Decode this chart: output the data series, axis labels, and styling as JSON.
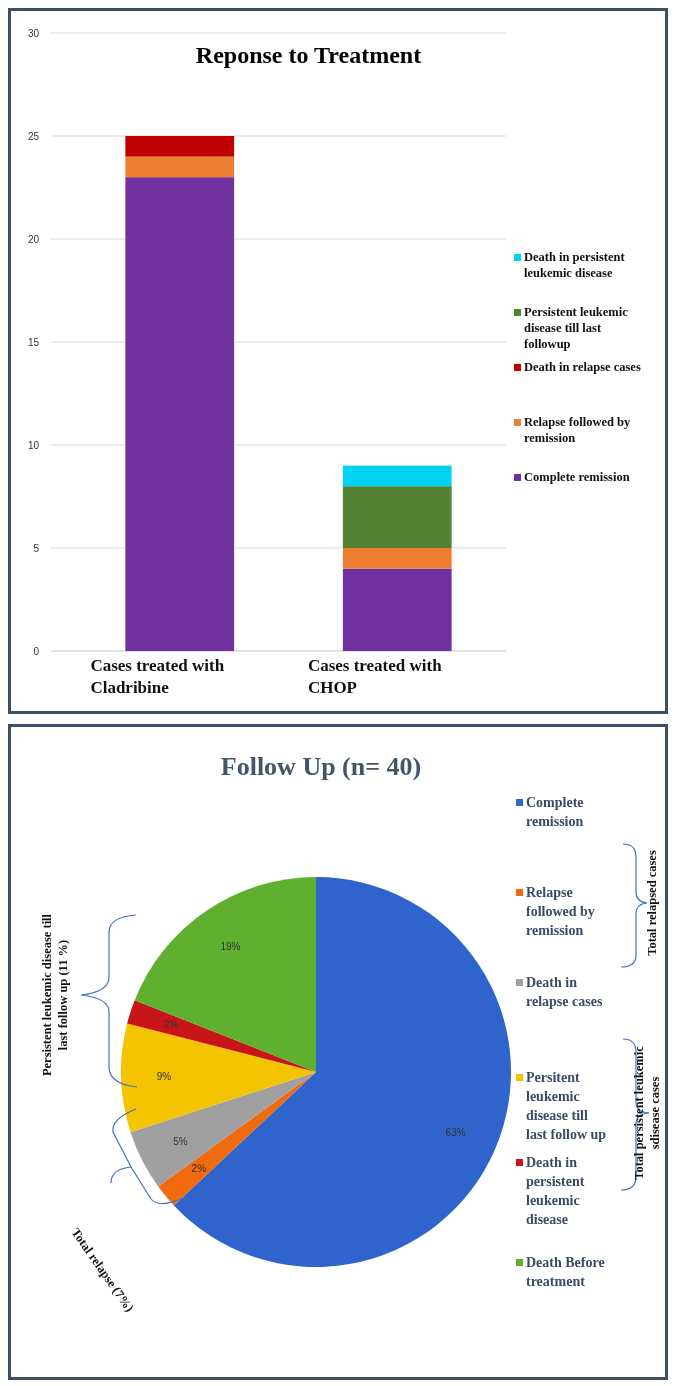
{
  "chart_data": [
    {
      "type": "bar",
      "title": "Reponse to Treatment",
      "stacked": true,
      "categories": [
        "Cases treated  with Cladribine",
        "Cases treated with CHOP"
      ],
      "series": [
        {
          "name": "Complete remission",
          "color": "#7030a0",
          "values": [
            23,
            4
          ]
        },
        {
          "name": "Relapse followed by remission",
          "color": "#ed7d31",
          "values": [
            1,
            1
          ]
        },
        {
          "name": "Death in relapse cases",
          "color": "#c00000",
          "values": [
            1,
            0
          ]
        },
        {
          "name": "Persistent leukemic disease till last followup",
          "color": "#548235",
          "values": [
            0,
            3
          ]
        },
        {
          "name": "Death in persistent leukemic disease",
          "color": "#00d2f0",
          "values": [
            0,
            1
          ]
        }
      ],
      "ylim": [
        0,
        30
      ],
      "yticks": [
        0,
        5,
        10,
        15,
        20,
        25,
        30
      ],
      "grid": "y",
      "legend": "right"
    },
    {
      "type": "pie",
      "title": "Follow Up (n= 40)",
      "categories": [
        "Complete remission",
        "Relapse followed by remission",
        "Death in relapse  cases",
        "Persitent leukemic disease till last follow up",
        "Death in persistent leukemic disease",
        "Death Before treatment"
      ],
      "values": [
        63,
        2,
        5,
        9,
        2,
        19
      ],
      "colors": [
        "#2e64cc",
        "#f06a10",
        "#a0a0a0",
        "#f5c400",
        "#c8151a",
        "#60b030"
      ],
      "value_labels": [
        "63%",
        "2%",
        "5%",
        "9%",
        "2%",
        "19%"
      ],
      "legend": "right",
      "annotations": [
        "Total relapsed cases",
        "Total persistent leukemic sdisease cases",
        "Persistent leukemic disease till last follow up (11 %)",
        "Total relapse (7%)"
      ]
    }
  ]
}
